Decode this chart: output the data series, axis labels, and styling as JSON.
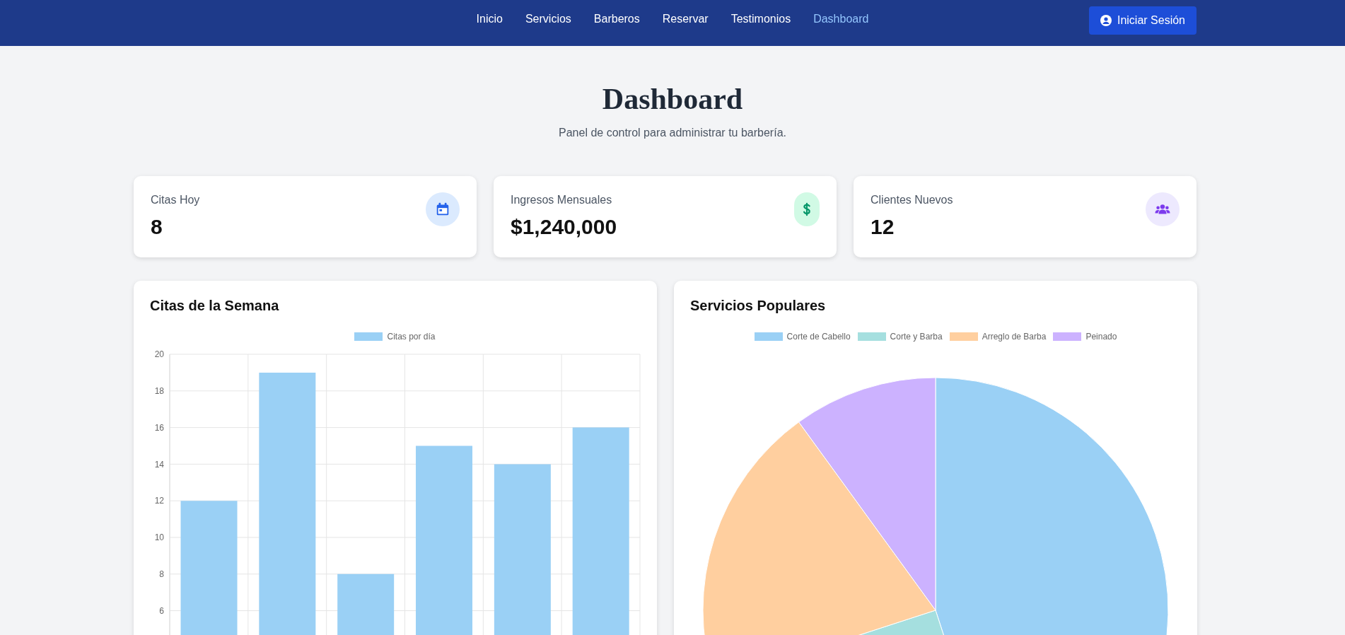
{
  "chart_data": [
    {
      "type": "other",
      "title": "Dashboard",
      "subtitle": "Panel de control para administrar tu barbería.",
      "annotations": [
        "Inicio",
        "Servicios",
        "Barberos",
        "Reservar",
        "Testimonios",
        "Dashboard",
        "Iniciar Sesión"
      ]
    },
    {
      "type": "other",
      "title": "Citas Hoy",
      "annotations": [
        "8"
      ]
    },
    {
      "type": "other",
      "title": "Ingresos Mensuales",
      "annotations": [
        "$1,240,000"
      ]
    },
    {
      "type": "other",
      "title": "Clientes Nuevos",
      "annotations": [
        "12"
      ]
    },
    {
      "type": "bar",
      "title": "Citas de la Semana",
      "categories": [
        null,
        null,
        null,
        null,
        null,
        null
      ],
      "series": [
        {
          "name": "Citas por día",
          "color": "#9ad0f5",
          "values": [
            12,
            19,
            8,
            15,
            14,
            16
          ]
        }
      ],
      "ylim": [
        0,
        20
      ],
      "yticks": [
        6,
        8,
        10,
        12,
        14,
        16,
        18,
        20
      ],
      "grid": true,
      "legend": "top",
      "tick_labels": "y"
    },
    {
      "type": "pie",
      "title": "Servicios Populares",
      "categories": [
        "Corte de Cabello",
        "Corte y Barba",
        "Arreglo de Barba",
        "Peinado"
      ],
      "values": [
        45,
        25,
        20,
        10
      ],
      "colors": [
        "#9ad0f5",
        "#a5dfdf",
        "#ffcf9f",
        "#ccb2ff"
      ],
      "legend": "top"
    }
  ]
}
